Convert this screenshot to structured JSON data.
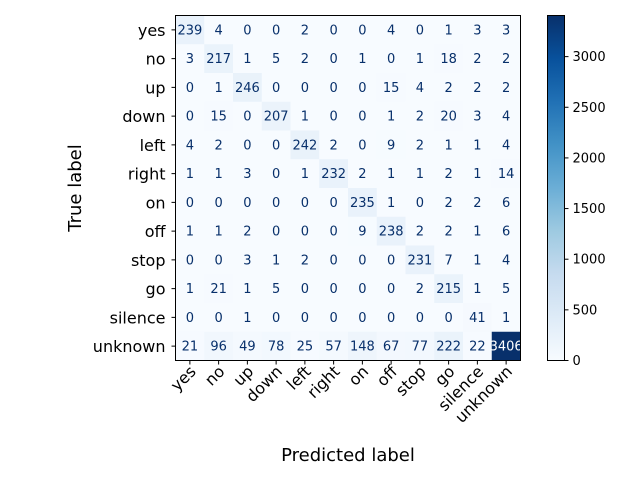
{
  "chart_data": {
    "type": "heatmap",
    "title": "",
    "xlabel": "Predicted label",
    "ylabel": "True label",
    "labels": [
      "yes",
      "no",
      "up",
      "down",
      "left",
      "right",
      "on",
      "off",
      "stop",
      "go",
      "silence",
      "unknown"
    ],
    "matrix": [
      [
        239,
        4,
        0,
        0,
        2,
        0,
        0,
        4,
        0,
        1,
        3,
        3
      ],
      [
        3,
        217,
        1,
        5,
        2,
        0,
        1,
        0,
        1,
        18,
        2,
        2
      ],
      [
        0,
        1,
        246,
        0,
        0,
        0,
        0,
        15,
        4,
        2,
        2,
        2
      ],
      [
        0,
        15,
        0,
        207,
        1,
        0,
        0,
        1,
        2,
        20,
        3,
        4
      ],
      [
        4,
        2,
        0,
        0,
        242,
        2,
        0,
        9,
        2,
        1,
        1,
        4
      ],
      [
        1,
        1,
        3,
        0,
        1,
        232,
        2,
        1,
        1,
        2,
        1,
        14
      ],
      [
        0,
        0,
        0,
        0,
        0,
        0,
        235,
        1,
        0,
        2,
        2,
        6
      ],
      [
        1,
        1,
        2,
        0,
        0,
        0,
        9,
        238,
        2,
        2,
        1,
        6
      ],
      [
        0,
        0,
        3,
        1,
        2,
        0,
        0,
        0,
        231,
        7,
        1,
        4
      ],
      [
        1,
        21,
        1,
        5,
        0,
        0,
        0,
        0,
        2,
        215,
        1,
        5
      ],
      [
        0,
        0,
        1,
        0,
        0,
        0,
        0,
        0,
        0,
        0,
        41,
        1
      ],
      [
        21,
        96,
        49,
        78,
        25,
        57,
        148,
        67,
        77,
        222,
        22,
        3406
      ]
    ],
    "colorbar": {
      "min": 0,
      "max": 3406,
      "ticks": [
        0,
        500,
        1000,
        1500,
        2000,
        2500,
        3000
      ],
      "colormap": "Blues"
    },
    "colors": {
      "colormap_low": "#f7fbff",
      "colormap_high": "#08306b",
      "text_dark_cells": "#08306b",
      "text_light_cells": "#ffffff"
    }
  }
}
